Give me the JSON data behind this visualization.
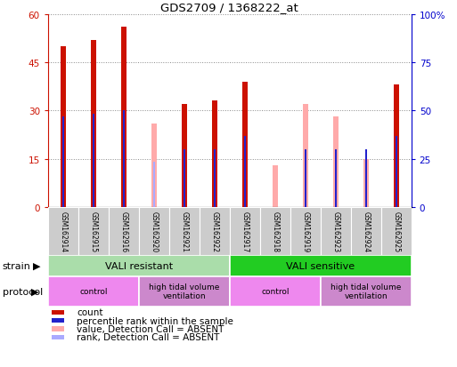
{
  "title": "GDS2709 / 1368222_at",
  "samples": [
    "GSM162914",
    "GSM162915",
    "GSM162916",
    "GSM162920",
    "GSM162921",
    "GSM162922",
    "GSM162917",
    "GSM162918",
    "GSM162919",
    "GSM162923",
    "GSM162924",
    "GSM162925"
  ],
  "count_values": [
    50,
    52,
    56,
    0,
    32,
    33,
    39,
    0,
    0,
    0,
    0,
    38
  ],
  "rank_values": [
    28,
    29,
    30,
    0,
    18,
    18,
    22,
    0,
    18,
    18,
    18,
    22
  ],
  "absent_value_values": [
    0,
    0,
    0,
    26,
    0,
    0,
    0,
    13,
    32,
    28,
    15,
    0
  ],
  "absent_rank_values": [
    0,
    0,
    0,
    14,
    0,
    0,
    0,
    0,
    15,
    15,
    0,
    0
  ],
  "count_color": "#cc1100",
  "rank_color": "#2222cc",
  "absent_value_color": "#ffaaaa",
  "absent_rank_color": "#aaaaff",
  "ylim_left": [
    0,
    60
  ],
  "ylim_right": [
    0,
    100
  ],
  "yticks_left": [
    0,
    15,
    30,
    45,
    60
  ],
  "yticks_right": [
    0,
    25,
    50,
    75,
    100
  ],
  "yticklabels_left": [
    "0",
    "15",
    "30",
    "45",
    "60"
  ],
  "yticklabels_right": [
    "0",
    "25",
    "50",
    "75",
    "100%"
  ],
  "left_tick_color": "#cc1100",
  "right_tick_color": "#0000cc",
  "strain_groups": [
    {
      "label": "VALI resistant",
      "start": 0,
      "end": 6,
      "color": "#aaddaa"
    },
    {
      "label": "VALI sensitive",
      "start": 6,
      "end": 12,
      "color": "#22cc22"
    }
  ],
  "protocol_groups": [
    {
      "label": "control",
      "start": 0,
      "end": 3,
      "color": "#ee88ee"
    },
    {
      "label": "high tidal volume\nventilation",
      "start": 3,
      "end": 6,
      "color": "#cc88cc"
    },
    {
      "label": "control",
      "start": 6,
      "end": 9,
      "color": "#ee88ee"
    },
    {
      "label": "high tidal volume\nventilation",
      "start": 9,
      "end": 12,
      "color": "#cc88cc"
    }
  ],
  "legend_items": [
    {
      "color": "#cc1100",
      "label": "count"
    },
    {
      "color": "#2222cc",
      "label": "percentile rank within the sample"
    },
    {
      "color": "#ffaaaa",
      "label": "value, Detection Call = ABSENT"
    },
    {
      "color": "#aaaaff",
      "label": "rank, Detection Call = ABSENT"
    }
  ],
  "count_bar_width": 0.18,
  "rank_bar_width": 0.07,
  "background_color": "#ffffff",
  "grid_color": "#888888",
  "fig_width": 5.13,
  "fig_height": 4.14,
  "dpi": 100
}
